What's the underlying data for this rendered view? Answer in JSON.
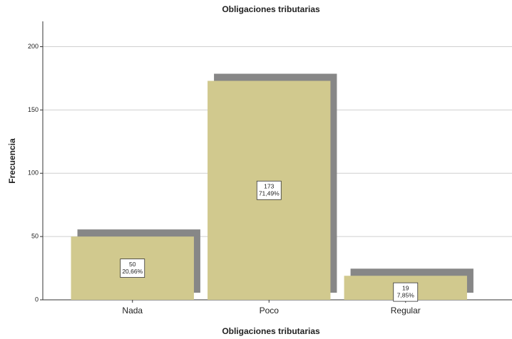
{
  "chart_data": {
    "type": "bar",
    "title": "Obligaciones tributarias",
    "x_label": "Obligaciones tributarias",
    "y_label": "Frecuencia",
    "categories": [
      "Nada",
      "Poco",
      "Regular"
    ],
    "values": [
      50,
      173,
      19
    ],
    "percent_values": [
      20.66,
      71.49,
      7.85
    ],
    "percent_labels": [
      "20,66%",
      "71,49%",
      "7,85%"
    ],
    "color": "#d1c98e",
    "shadow_color": "#878787",
    "ylim": [
      0,
      220
    ],
    "yticks": [
      0,
      50,
      100,
      150,
      200
    ],
    "grid": true
  }
}
